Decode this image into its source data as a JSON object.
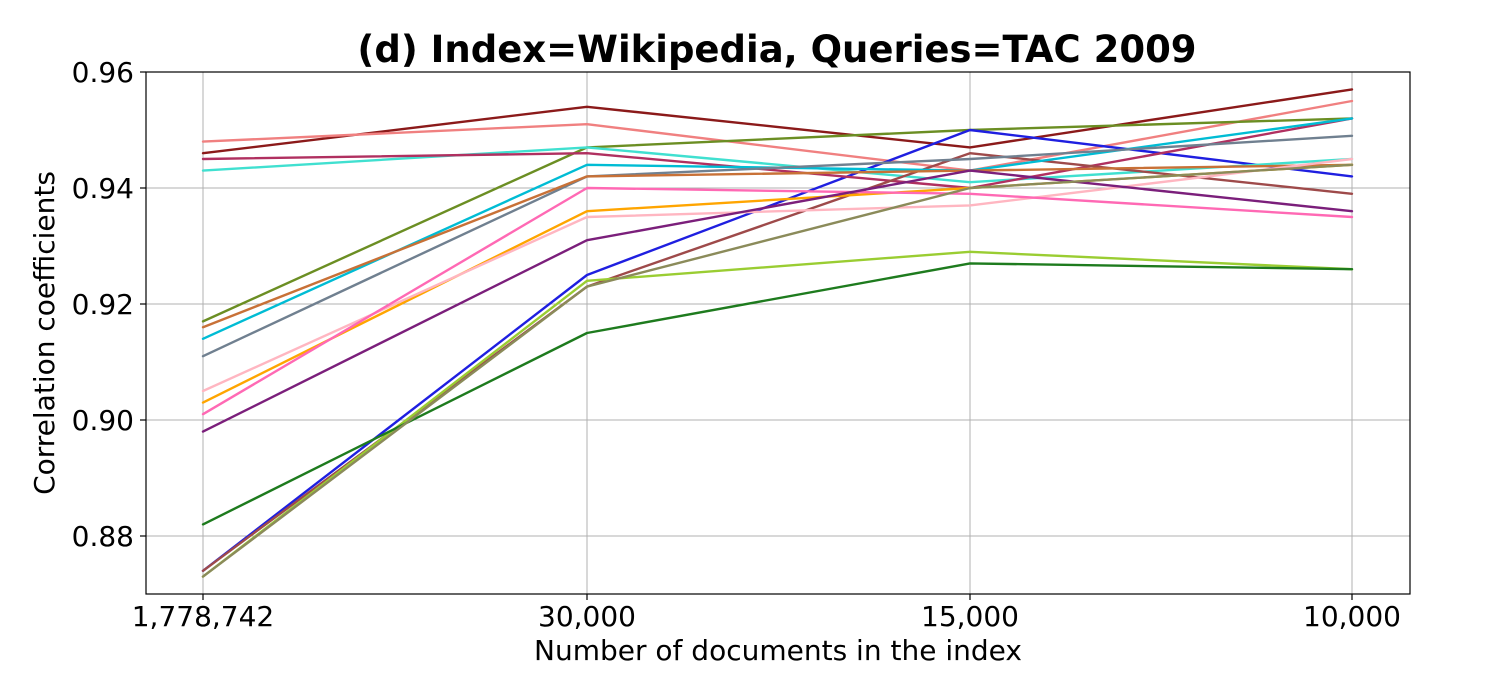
{
  "chart_data": {
    "type": "line",
    "title": "(d) Index=Wikipedia, Queries=TAC 2009",
    "xlabel": "Number of documents in the index",
    "ylabel": "Correlation coefficients",
    "categories": [
      "1,778,742",
      "30,000",
      "15,000",
      "10,000"
    ],
    "ylim": [
      0.87,
      0.96
    ],
    "yticks": [
      0.88,
      0.9,
      0.92,
      0.94,
      0.96
    ],
    "ytick_labels": [
      "0.88",
      "0.90",
      "0.92",
      "0.94",
      "0.96"
    ],
    "grid": true,
    "series": [
      {
        "color": "#8b1a1a",
        "values": [
          0.946,
          0.954,
          0.947,
          0.957
        ]
      },
      {
        "color": "#f08080",
        "values": [
          0.948,
          0.951,
          0.943,
          0.955
        ]
      },
      {
        "color": "#6b8e23",
        "values": [
          0.917,
          0.947,
          0.95,
          0.952
        ]
      },
      {
        "color": "#1f1fe0",
        "values": [
          0.874,
          0.925,
          0.95,
          0.942
        ]
      },
      {
        "color": "#40e0d0",
        "values": [
          0.943,
          0.947,
          0.941,
          0.945
        ]
      },
      {
        "color": "#b03060",
        "values": [
          0.945,
          0.946,
          0.94,
          0.952
        ]
      },
      {
        "color": "#9e4a4a",
        "values": [
          0.874,
          0.923,
          0.946,
          0.939
        ]
      },
      {
        "color": "#00bcd4",
        "values": [
          0.914,
          0.944,
          0.943,
          0.952
        ]
      },
      {
        "color": "#708090",
        "values": [
          0.911,
          0.942,
          0.945,
          0.949
        ]
      },
      {
        "color": "#c87137",
        "values": [
          0.916,
          0.942,
          0.943,
          0.944
        ]
      },
      {
        "color": "#ffa500",
        "values": [
          0.903,
          0.936,
          0.94,
          0.944
        ]
      },
      {
        "color": "#ffb6c1",
        "values": [
          0.905,
          0.935,
          0.937,
          0.945
        ]
      },
      {
        "color": "#ff69b4",
        "values": [
          0.901,
          0.94,
          0.939,
          0.935
        ]
      },
      {
        "color": "#7b1f7b",
        "values": [
          0.898,
          0.931,
          0.943,
          0.936
        ]
      },
      {
        "color": "#9acd32",
        "values": [
          0.873,
          0.924,
          0.929,
          0.926
        ]
      },
      {
        "color": "#1e7b1e",
        "values": [
          0.882,
          0.915,
          0.927,
          0.926
        ]
      },
      {
        "color": "#8b8b5a",
        "values": [
          0.873,
          0.923,
          0.94,
          0.944
        ]
      }
    ]
  }
}
